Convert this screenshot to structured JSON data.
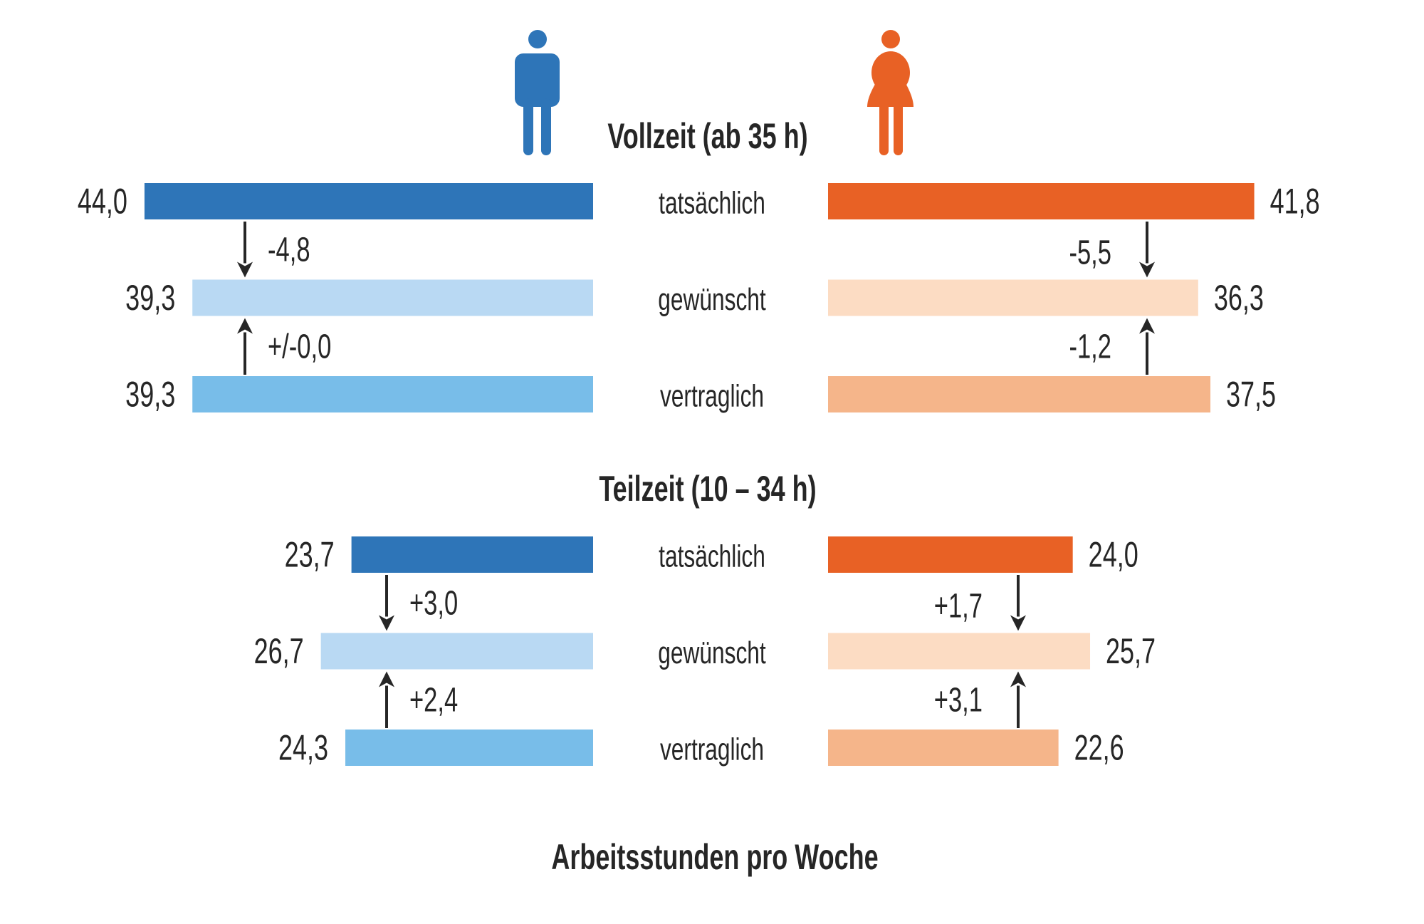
{
  "chart_data": {
    "type": "bar",
    "orientation": "horizontal-butterfly",
    "xlabel": "Arbeitsstunden pro Woche",
    "categories": [
      "tatsächlich",
      "gewünscht",
      "vertraglich"
    ],
    "legend": [
      {
        "name": "Männer",
        "icon": "man-icon",
        "side": "left"
      },
      {
        "name": "Frauen",
        "icon": "woman-icon",
        "side": "right"
      }
    ],
    "colors": {
      "male": [
        "#2e75b8",
        "#b9d9f3",
        "#78bde9"
      ],
      "female": [
        "#e86125",
        "#fcdcc3",
        "#f5b58a"
      ],
      "text": "#262626"
    },
    "panels": [
      {
        "title": "Vollzeit (ab 35 h)",
        "male": {
          "values": [
            44.0,
            39.3,
            39.3
          ],
          "value_labels": [
            "44,0",
            "39,3",
            "39,3"
          ],
          "deltas": [
            {
              "from": "tatsächlich",
              "to": "gewünscht",
              "label": "-4,8",
              "direction": "down"
            },
            {
              "from": "vertraglich",
              "to": "gewünscht",
              "label": "+/-0,0",
              "direction": "up"
            }
          ]
        },
        "female": {
          "values": [
            41.8,
            36.3,
            37.5
          ],
          "value_labels": [
            "41,8",
            "36,3",
            "37,5"
          ],
          "deltas": [
            {
              "from": "tatsächlich",
              "to": "gewünscht",
              "label": "-5,5",
              "direction": "down"
            },
            {
              "from": "vertraglich",
              "to": "gewünscht",
              "label": "-1,2",
              "direction": "up"
            }
          ]
        }
      },
      {
        "title": "Teilzeit (10 – 34 h)",
        "male": {
          "values": [
            23.7,
            26.7,
            24.3
          ],
          "value_labels": [
            "23,7",
            "26,7",
            "24,3"
          ],
          "deltas": [
            {
              "from": "tatsächlich",
              "to": "gewünscht",
              "label": "+3,0",
              "direction": "down"
            },
            {
              "from": "vertraglich",
              "to": "gewünscht",
              "label": "+2,4",
              "direction": "up"
            }
          ]
        },
        "female": {
          "values": [
            24.0,
            25.7,
            22.6
          ],
          "value_labels": [
            "24,0",
            "25,7",
            "22,6"
          ],
          "deltas": [
            {
              "from": "tatsächlich",
              "to": "gewünscht",
              "label": "+1,7",
              "direction": "down"
            },
            {
              "from": "vertraglich",
              "to": "gewünscht",
              "label": "+3,1",
              "direction": "up"
            }
          ]
        }
      }
    ]
  }
}
